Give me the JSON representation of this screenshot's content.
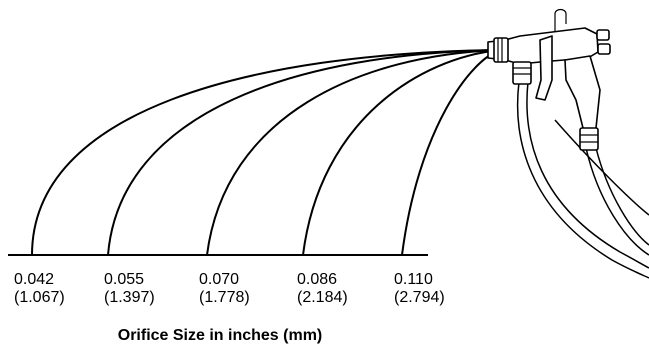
{
  "orifice_sizes": [
    {
      "inches": "0.042",
      "mm": "(1.067)"
    },
    {
      "inches": "0.055",
      "mm": "(1.397)"
    },
    {
      "inches": "0.070",
      "mm": "(1.778)"
    },
    {
      "inches": "0.086",
      "mm": "(2.184)"
    },
    {
      "inches": "0.110",
      "mm": "(2.794)"
    }
  ],
  "axis_title": "Orifice Size in inches (mm)",
  "icons": [
    "spray-gun-icon",
    "fluid-hose-icon"
  ],
  "colors": {
    "line": "#000000",
    "background": "#ffffff"
  }
}
